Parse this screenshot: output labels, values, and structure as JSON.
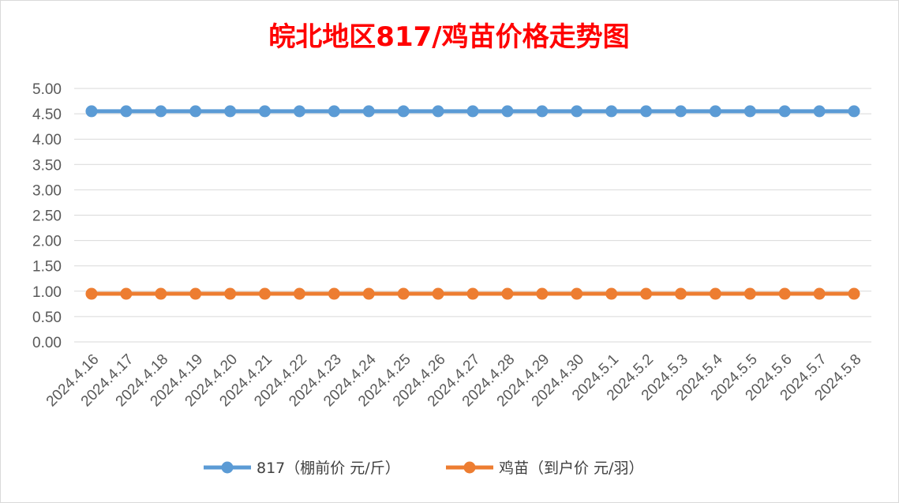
{
  "chart_data": {
    "type": "line",
    "title": "皖北地区817/鸡苗价格走势图",
    "categories": [
      "2024.4.16",
      "2024.4.17",
      "2024.4.18",
      "2024.4.19",
      "2024.4.20",
      "2024.4.21",
      "2024.4.22",
      "2024.4.23",
      "2024.4.24",
      "2024.4.25",
      "2024.4.26",
      "2024.4.27",
      "2024.4.28",
      "2024.4.29",
      "2024.4.30",
      "2024.5.1",
      "2024.5.2",
      "2024.5.3",
      "2024.5.4",
      "2024.5.5",
      "2024.5.6",
      "2024.5.7",
      "2024.5.8"
    ],
    "yticks": [
      "0.00",
      "0.50",
      "1.00",
      "1.50",
      "2.00",
      "2.50",
      "3.00",
      "3.50",
      "4.00",
      "4.50",
      "5.00"
    ],
    "ylim": [
      0,
      5
    ],
    "grid": true,
    "legend_position": "bottom",
    "series": [
      {
        "name": "817（棚前价 元/斤）",
        "color": "#5b9bd5",
        "values": [
          4.55,
          4.55,
          4.55,
          4.55,
          4.55,
          4.55,
          4.55,
          4.55,
          4.55,
          4.55,
          4.55,
          4.55,
          4.55,
          4.55,
          4.55,
          4.55,
          4.55,
          4.55,
          4.55,
          4.55,
          4.55,
          4.55,
          4.55
        ]
      },
      {
        "name": "鸡苗（到户价 元/羽）",
        "color": "#ed7d31",
        "values": [
          0.95,
          0.95,
          0.95,
          0.95,
          0.95,
          0.95,
          0.95,
          0.95,
          0.95,
          0.95,
          0.95,
          0.95,
          0.95,
          0.95,
          0.95,
          0.95,
          0.95,
          0.95,
          0.95,
          0.95,
          0.95,
          0.95,
          0.95
        ]
      }
    ]
  }
}
